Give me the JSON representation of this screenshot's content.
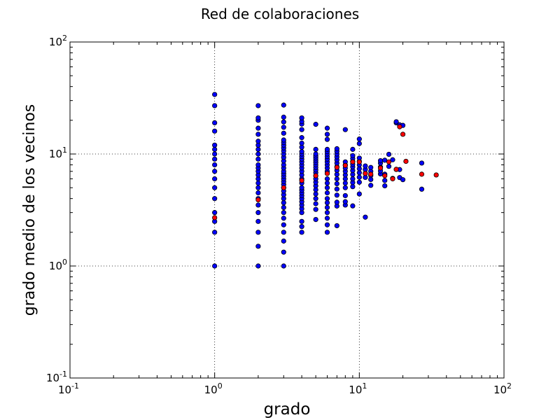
{
  "chart_data": {
    "type": "scatter",
    "title": "Red de colaboraciones",
    "xlabel": "grado",
    "ylabel": "grado medio de los vecinos",
    "xscale": "log",
    "yscale": "log",
    "xlim": [
      0.1,
      100
    ],
    "ylim": [
      0.1,
      100
    ],
    "grid": true,
    "x_ticks": [
      {
        "base": "10",
        "exp": "-1"
      },
      {
        "base": "10",
        "exp": "0"
      },
      {
        "base": "10",
        "exp": "1"
      },
      {
        "base": "10",
        "exp": "2"
      }
    ],
    "y_ticks": [
      {
        "base": "10",
        "exp": "-1"
      },
      {
        "base": "10",
        "exp": "0"
      },
      {
        "base": "10",
        "exp": "1"
      },
      {
        "base": "10",
        "exp": "2"
      }
    ],
    "series": [
      {
        "color": "#0000ff",
        "points": [
          [
            1,
            1
          ],
          [
            1,
            2
          ],
          [
            1,
            2.5
          ],
          [
            1,
            3
          ],
          [
            1,
            4
          ],
          [
            1,
            5
          ],
          [
            1,
            6
          ],
          [
            1,
            7
          ],
          [
            1,
            8
          ],
          [
            1,
            9
          ],
          [
            1,
            10
          ],
          [
            1,
            11
          ],
          [
            1,
            12
          ],
          [
            1,
            16
          ],
          [
            1,
            19
          ],
          [
            1,
            27
          ],
          [
            1,
            34
          ],
          [
            2,
            1
          ],
          [
            2,
            1.5
          ],
          [
            2,
            2
          ],
          [
            2,
            2.5
          ],
          [
            2,
            3
          ],
          [
            2,
            3.5
          ],
          [
            2,
            4
          ],
          [
            2,
            4.5
          ],
          [
            2,
            5
          ],
          [
            2,
            5.5
          ],
          [
            2,
            6
          ],
          [
            2,
            6.5
          ],
          [
            2,
            7
          ],
          [
            2,
            7.5
          ],
          [
            2,
            8
          ],
          [
            2,
            9
          ],
          [
            2,
            10
          ],
          [
            2,
            11
          ],
          [
            2,
            12
          ],
          [
            2,
            13
          ],
          [
            2,
            15
          ],
          [
            2,
            17
          ],
          [
            2,
            20
          ],
          [
            2,
            21
          ],
          [
            2,
            27
          ],
          [
            3,
            1
          ],
          [
            3,
            1.33
          ],
          [
            3,
            1.67
          ],
          [
            3,
            2
          ],
          [
            3,
            2.33
          ],
          [
            3,
            2.67
          ],
          [
            3,
            3
          ],
          [
            3,
            3.33
          ],
          [
            3,
            3.67
          ],
          [
            3,
            4
          ],
          [
            3,
            4.33
          ],
          [
            3,
            4.67
          ],
          [
            3,
            5
          ],
          [
            3,
            5.33
          ],
          [
            3,
            5.67
          ],
          [
            3,
            6
          ],
          [
            3,
            6.33
          ],
          [
            3,
            6.67
          ],
          [
            3,
            7
          ],
          [
            3,
            7.5
          ],
          [
            3,
            8
          ],
          [
            3,
            8.67
          ],
          [
            3,
            9.33
          ],
          [
            3,
            10
          ],
          [
            3,
            10.67
          ],
          [
            3,
            11.33
          ],
          [
            3,
            12
          ],
          [
            3,
            12.67
          ],
          [
            3,
            13.33
          ],
          [
            3,
            15.33
          ],
          [
            3,
            17.33
          ],
          [
            3,
            19.33
          ],
          [
            3,
            21.33
          ],
          [
            3,
            27.33
          ],
          [
            4,
            2
          ],
          [
            4,
            2.25
          ],
          [
            4,
            2.5
          ],
          [
            4,
            3
          ],
          [
            4,
            3.25
          ],
          [
            4,
            3.5
          ],
          [
            4,
            3.75
          ],
          [
            4,
            4
          ],
          [
            4,
            4.25
          ],
          [
            4,
            4.5
          ],
          [
            4,
            4.75
          ],
          [
            4,
            5
          ],
          [
            4,
            5.5
          ],
          [
            4,
            6
          ],
          [
            4,
            6.5
          ],
          [
            4,
            7
          ],
          [
            4,
            7.5
          ],
          [
            4,
            8
          ],
          [
            4,
            8.5
          ],
          [
            4,
            9
          ],
          [
            4,
            9.5
          ],
          [
            4,
            10
          ],
          [
            4,
            10.5
          ],
          [
            4,
            11.5
          ],
          [
            4,
            12.5
          ],
          [
            4,
            14
          ],
          [
            4,
            16.5
          ],
          [
            4,
            18.5
          ],
          [
            4,
            19.5
          ],
          [
            4,
            21
          ],
          [
            5,
            2.6
          ],
          [
            5,
            3.2
          ],
          [
            5,
            3.6
          ],
          [
            5,
            4
          ],
          [
            5,
            4.4
          ],
          [
            5,
            4.8
          ],
          [
            5,
            5.2
          ],
          [
            5,
            5.6
          ],
          [
            5,
            6
          ],
          [
            5,
            6.4
          ],
          [
            5,
            6.8
          ],
          [
            5,
            7.2
          ],
          [
            5,
            7.6
          ],
          [
            5,
            8
          ],
          [
            5,
            8.4
          ],
          [
            5,
            8.8
          ],
          [
            5,
            9.2
          ],
          [
            5,
            9.6
          ],
          [
            5,
            10
          ],
          [
            5,
            11
          ],
          [
            5,
            18.4
          ],
          [
            6,
            2
          ],
          [
            6,
            2.33
          ],
          [
            6,
            2.67
          ],
          [
            6,
            3
          ],
          [
            6,
            3.33
          ],
          [
            6,
            3.67
          ],
          [
            6,
            4
          ],
          [
            6,
            4.5
          ],
          [
            6,
            5
          ],
          [
            6,
            5.5
          ],
          [
            6,
            6
          ],
          [
            6,
            7
          ],
          [
            6,
            7.5
          ],
          [
            6,
            8
          ],
          [
            6,
            8.5
          ],
          [
            6,
            9
          ],
          [
            6,
            9.5
          ],
          [
            6,
            10
          ],
          [
            6,
            10.5
          ],
          [
            6,
            11
          ],
          [
            6,
            13.5
          ],
          [
            6,
            15
          ],
          [
            6,
            17
          ],
          [
            7,
            2.29
          ],
          [
            7,
            3.43
          ],
          [
            7,
            3.71
          ],
          [
            7,
            4.29
          ],
          [
            7,
            4.86
          ],
          [
            7,
            5.43
          ],
          [
            7,
            6
          ],
          [
            7,
            6.57
          ],
          [
            7,
            7.14
          ],
          [
            7,
            7.71
          ],
          [
            7,
            8.29
          ],
          [
            7,
            8.86
          ],
          [
            7,
            9.43
          ],
          [
            7,
            10
          ],
          [
            7,
            10.57
          ],
          [
            7,
            11.14
          ],
          [
            8,
            3.5
          ],
          [
            8,
            3.75
          ],
          [
            8,
            4.25
          ],
          [
            8,
            5
          ],
          [
            8,
            5.5
          ],
          [
            8,
            6
          ],
          [
            8,
            6.5
          ],
          [
            8,
            7
          ],
          [
            8,
            7.5
          ],
          [
            8,
            8
          ],
          [
            8,
            8.5
          ],
          [
            8,
            16.5
          ],
          [
            9,
            3.44
          ],
          [
            9,
            5.11
          ],
          [
            9,
            5.56
          ],
          [
            9,
            6
          ],
          [
            9,
            6.56
          ],
          [
            9,
            7.11
          ],
          [
            9,
            7.67
          ],
          [
            9,
            8.11
          ],
          [
            9,
            8.56
          ],
          [
            9,
            9.11
          ],
          [
            9,
            9.67
          ],
          [
            9,
            11
          ],
          [
            10,
            4.4
          ],
          [
            10,
            5.6
          ],
          [
            10,
            6.2
          ],
          [
            10,
            6.8
          ],
          [
            10,
            7.4
          ],
          [
            10,
            8
          ],
          [
            10,
            8.6
          ],
          [
            10,
            9.2
          ],
          [
            10,
            12.4
          ],
          [
            10,
            13.6
          ],
          [
            11,
            2.73
          ],
          [
            11,
            6.18
          ],
          [
            11,
            6.73
          ],
          [
            11,
            7.27
          ],
          [
            11,
            7.82
          ],
          [
            12,
            5.25
          ],
          [
            12,
            5.92
          ],
          [
            12,
            6.42
          ],
          [
            12,
            7
          ],
          [
            12,
            7.58
          ],
          [
            14,
            6.64
          ],
          [
            14,
            7.07
          ],
          [
            14,
            7.64
          ],
          [
            14,
            8.29
          ],
          [
            14,
            8.71
          ],
          [
            15,
            5.2
          ],
          [
            15,
            5.8
          ],
          [
            15,
            6.6
          ],
          [
            15,
            8.8
          ],
          [
            16,
            7.75
          ],
          [
            16,
            9.94
          ],
          [
            17,
            6.06
          ],
          [
            17,
            8.88
          ],
          [
            18,
            7.28
          ],
          [
            18,
            19
          ],
          [
            18,
            19.4
          ],
          [
            19,
            6.16
          ],
          [
            19,
            7.26
          ],
          [
            19,
            18.2
          ],
          [
            20,
            5.9
          ],
          [
            20,
            18
          ],
          [
            27,
            4.85
          ],
          [
            27,
            8.3
          ]
        ]
      },
      {
        "color": "#ff0000",
        "points": [
          [
            1,
            2.7
          ],
          [
            2,
            3.9
          ],
          [
            3,
            5
          ],
          [
            4,
            5.8
          ],
          [
            5,
            6.4
          ],
          [
            6,
            6.7
          ],
          [
            7,
            7.6
          ],
          [
            8,
            7.9
          ],
          [
            9,
            8.5
          ],
          [
            10,
            8.5
          ],
          [
            11,
            6.7
          ],
          [
            12,
            6.6
          ],
          [
            14,
            7.5
          ],
          [
            15,
            6.4
          ],
          [
            16,
            8.5
          ],
          [
            17,
            6
          ],
          [
            18,
            7.3
          ],
          [
            19,
            17.5
          ],
          [
            20,
            15
          ],
          [
            21,
            8.6
          ],
          [
            27,
            6.6
          ],
          [
            34,
            6.5
          ]
        ]
      }
    ]
  }
}
